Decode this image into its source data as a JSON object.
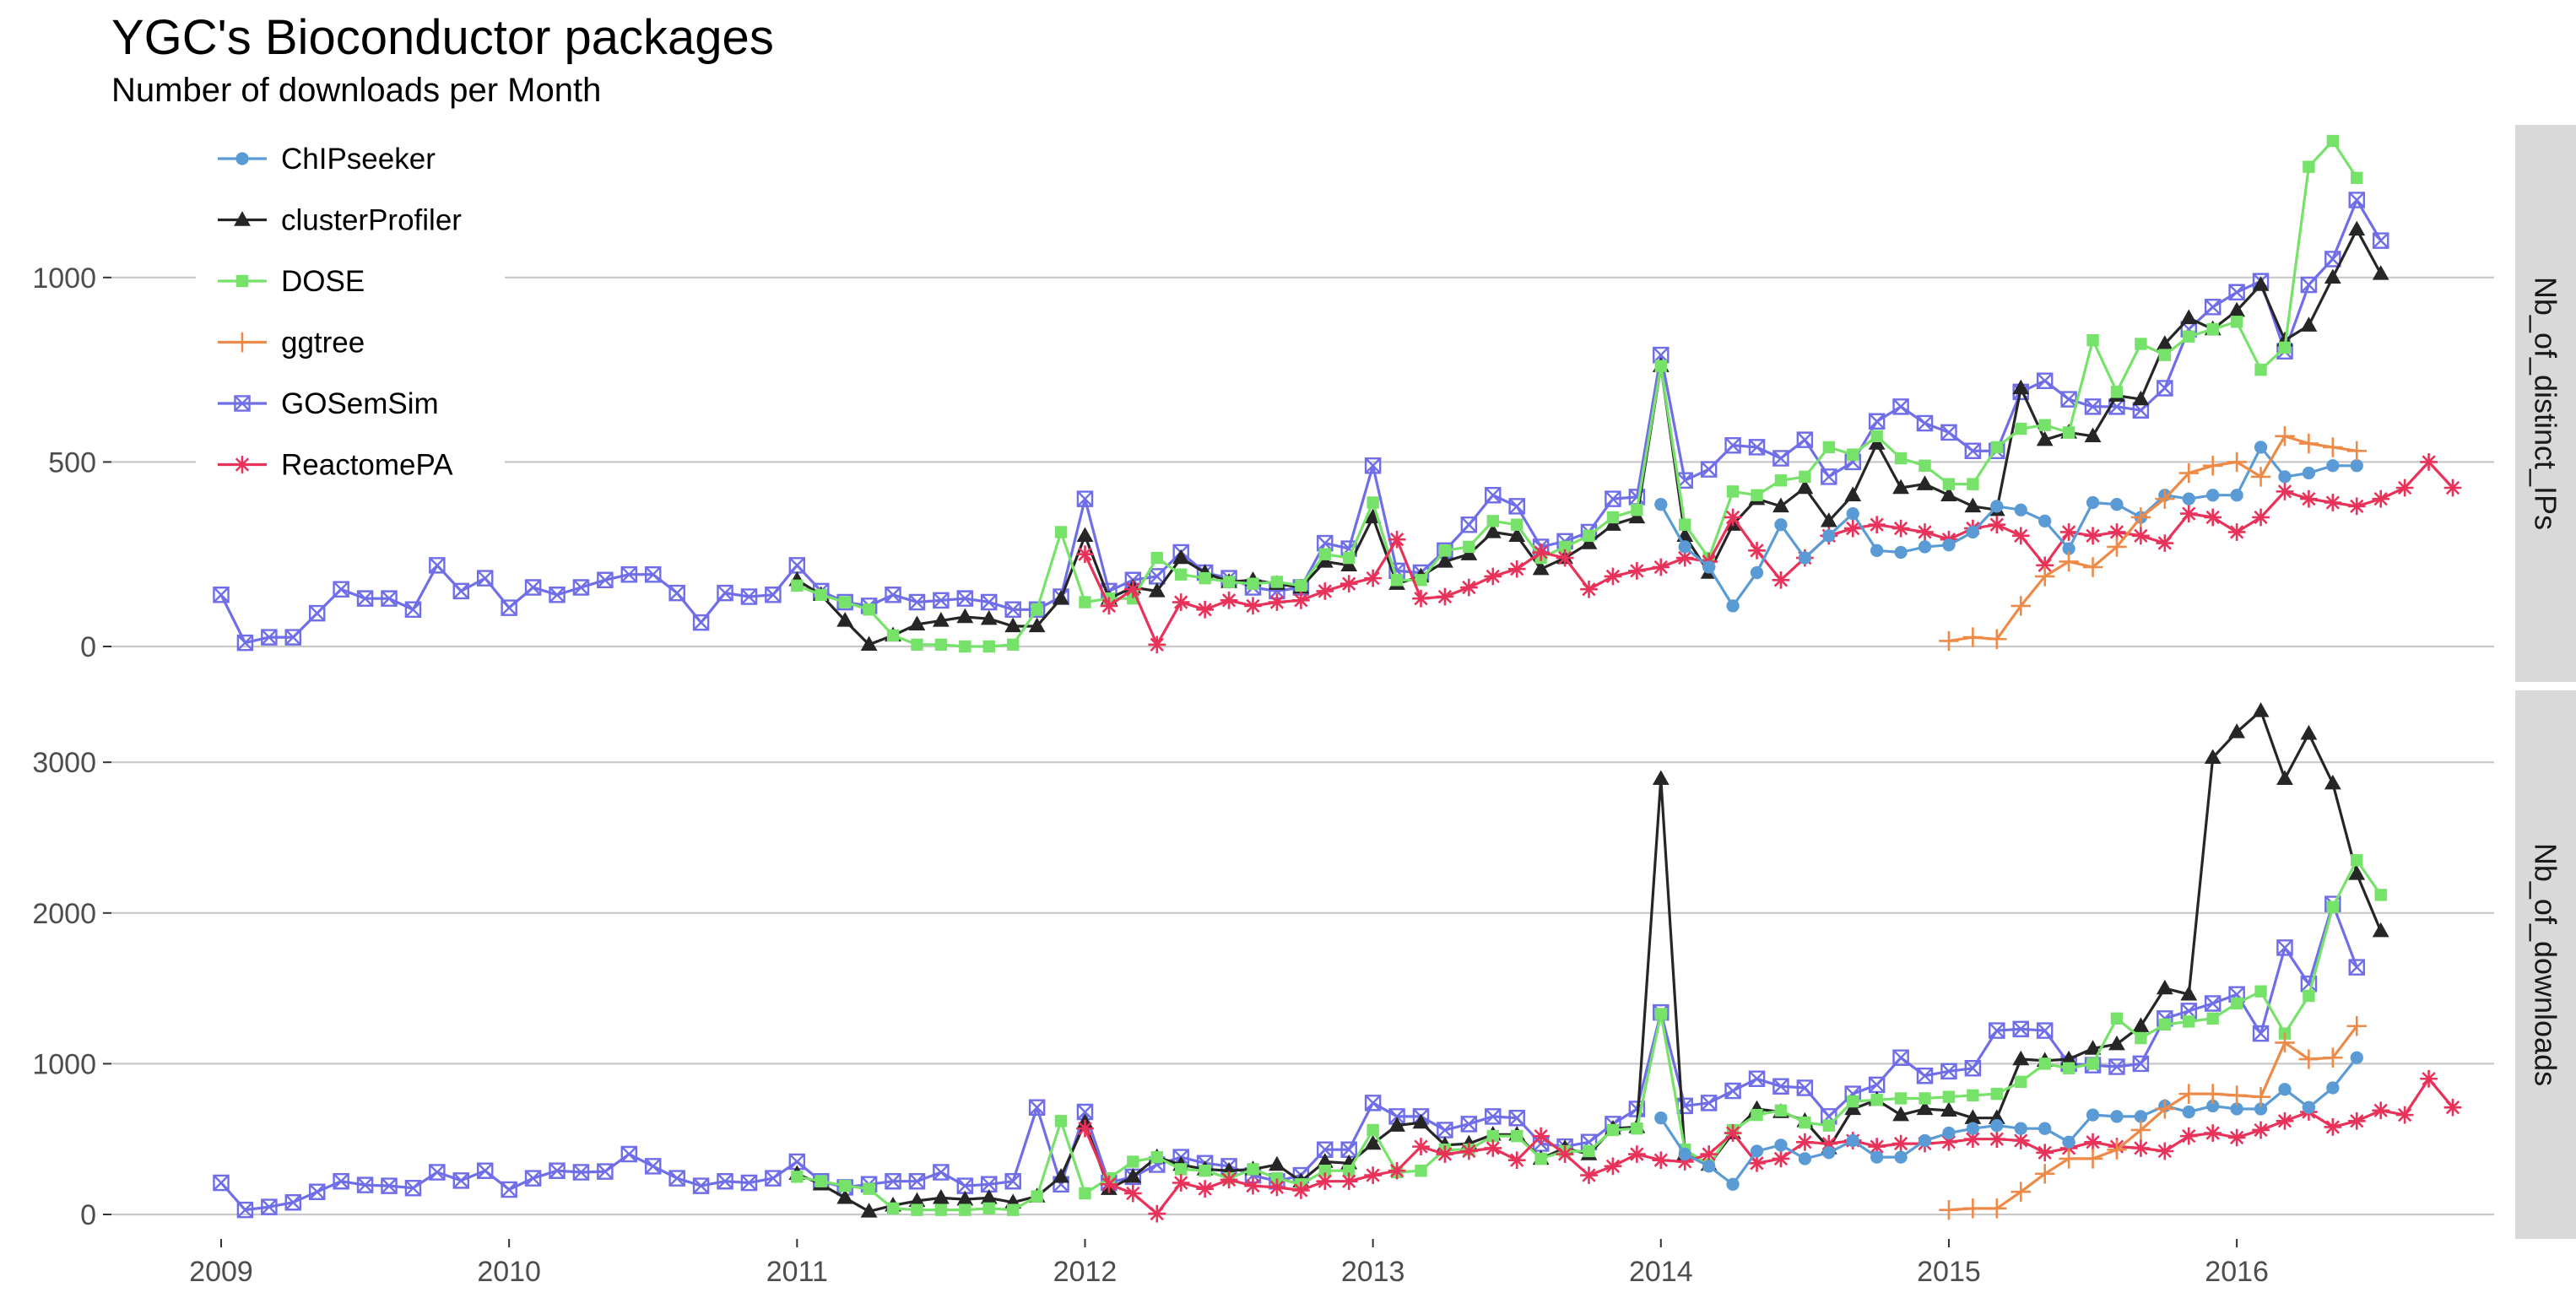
{
  "title": "YGC's Bioconductor packages",
  "subtitle": "Number of downloads per Month",
  "chart_data": {
    "type": "line",
    "x_label": "",
    "x_ticks": [
      "2009",
      "2010",
      "2011",
      "2012",
      "2013",
      "2014",
      "2015",
      "2016"
    ],
    "grid": true,
    "legend_position": "top-left (inside)",
    "legend": [
      {
        "name": "ChIPseeker",
        "color": "#5b9bd5",
        "marker": "circle"
      },
      {
        "name": "clusterProfiler",
        "color": "#262626",
        "marker": "triangle"
      },
      {
        "name": "DOSE",
        "color": "#77e26a",
        "marker": "square"
      },
      {
        "name": "ggtree",
        "color": "#ee8a47",
        "marker": "plus"
      },
      {
        "name": "GOSemSim",
        "color": "#6f6ee8",
        "marker": "square-x"
      },
      {
        "name": "ReactomePA",
        "color": "#e8325a",
        "marker": "asterisk"
      }
    ],
    "panels": [
      {
        "strip": "Nb_of_distinct_IPs",
        "ylim": [
          0,
          1400
        ],
        "y_ticks": [
          0,
          500,
          1000
        ],
        "series": [
          {
            "name": "GOSemSim",
            "start": "2009-01",
            "values": [
              140,
              10,
              25,
              25,
              90,
              155,
              130,
              130,
              100,
              220,
              150,
              185,
              105,
              160,
              140,
              160,
              180,
              195,
              195,
              145,
              65,
              145,
              135,
              140,
              220,
              150,
              120,
              110,
              140,
              120,
              125,
              130,
              120,
              100,
              100,
              135,
              400,
              150,
              180,
              190,
              255,
              200,
              185,
              160,
              150,
              160,
              280,
              265,
              490,
              205,
              200,
              260,
              330,
              410,
              380,
              270,
              285,
              310,
              400,
              405,
              790,
              450,
              480,
              545,
              540,
              510,
              560,
              460,
              500,
              610,
              650,
              605,
              580,
              530,
              530,
              690,
              720,
              670,
              650,
              650,
              640,
              700,
              860,
              920,
              960,
              990,
              800,
              980,
              1050,
              1210,
              1100
            ]
          },
          {
            "name": "clusterProfiler",
            "start": "2011-01",
            "values": [
              180,
              140,
              70,
              5,
              30,
              60,
              70,
              80,
              75,
              55,
              55,
              130,
              300,
              130,
              160,
              150,
              240,
              200,
              175,
              180,
              170,
              160,
              230,
              220,
              350,
              170,
              190,
              230,
              250,
              310,
              300,
              210,
              240,
              280,
              330,
              350,
              760,
              300,
              200,
              330,
              400,
              380,
              430,
              340,
              410,
              550,
              430,
              440,
              410,
              380,
              370,
              700,
              560,
              580,
              570,
              680,
              670,
              820,
              890,
              860,
              910,
              980,
              830,
              870,
              1000,
              1130,
              1010
            ]
          },
          {
            "name": "DOSE",
            "start": "2011-01",
            "values": [
              165,
              140,
              120,
              100,
              30,
              5,
              5,
              0,
              0,
              5,
              100,
              310,
              120,
              130,
              130,
              240,
              195,
              185,
              175,
              170,
              175,
              165,
              250,
              240,
              390,
              180,
              180,
              260,
              270,
              340,
              330,
              240,
              270,
              300,
              350,
              370,
              760,
              330,
              240,
              420,
              410,
              450,
              460,
              540,
              520,
              570,
              510,
              490,
              440,
              440,
              540,
              590,
              600,
              580,
              830,
              690,
              820,
              790,
              840,
              860,
              880,
              750,
              810,
              1300,
              1370,
              1270
            ]
          },
          {
            "name": "ReactomePA",
            "start": "2012-01",
            "values": [
              250,
              110,
              155,
              5,
              120,
              100,
              125,
              110,
              120,
              125,
              150,
              170,
              185,
              290,
              130,
              135,
              160,
              190,
              210,
              255,
              240,
              155,
              190,
              205,
              215,
              240,
              230,
              350,
              260,
              180,
              240,
              300,
              320,
              330,
              320,
              310,
              290,
              320,
              330,
              300,
              220,
              310,
              300,
              310,
              300,
              280,
              360,
              350,
              310,
              350,
              420,
              400,
              390,
              380,
              400,
              430,
              500,
              430
            ]
          },
          {
            "name": "ChIPseeker",
            "start": "2014-01",
            "values": [
              385,
              270,
              215,
              110,
              200,
              330,
              240,
              300,
              360,
              260,
              255,
              270,
              275,
              310,
              380,
              370,
              340,
              265,
              390,
              385,
              350,
              410,
              400,
              410,
              410,
              540,
              460,
              470,
              490,
              490
            ]
          },
          {
            "name": "ggtree",
            "start": "2015-01",
            "values": [
              15,
              25,
              20,
              110,
              190,
              230,
              215,
              270,
              350,
              400,
              470,
              490,
              500,
              460,
              570,
              550,
              540,
              530
            ]
          }
        ]
      },
      {
        "strip": "Nb_of_downloads",
        "ylim": [
          0,
          3500
        ],
        "y_ticks": [
          0,
          1000,
          2000,
          3000
        ],
        "series": [
          {
            "name": "GOSemSim",
            "start": "2009-01",
            "values": [
              210,
              30,
              50,
              80,
              150,
              220,
              195,
              190,
              175,
              280,
              225,
              290,
              165,
              240,
              290,
              280,
              285,
              400,
              320,
              240,
              190,
              220,
              210,
              240,
              350,
              220,
              180,
              200,
              220,
              220,
              280,
              190,
              200,
              220,
              710,
              200,
              680,
              210,
              250,
              330,
              380,
              340,
              320,
              260,
              220,
              260,
              430,
              430,
              740,
              650,
              650,
              560,
              600,
              650,
              640,
              470,
              450,
              480,
              600,
              700,
              1340,
              720,
              740,
              820,
              900,
              850,
              840,
              650,
              800,
              860,
              1040,
              920,
              950,
              970,
              1220,
              1230,
              1220,
              1000,
              990,
              980,
              1000,
              1300,
              1350,
              1400,
              1460,
              1200,
              1770,
              1530,
              2060,
              1640
            ]
          },
          {
            "name": "clusterProfiler",
            "start": "2011-01",
            "values": [
              270,
              200,
              110,
              20,
              60,
              90,
              110,
              100,
              110,
              80,
              120,
              250,
              610,
              170,
              250,
              380,
              330,
              300,
              290,
              300,
              330,
              220,
              350,
              340,
              470,
              590,
              610,
              460,
              470,
              530,
              530,
              370,
              440,
              400,
              570,
              580,
              2890,
              400,
              330,
              540,
              700,
              680,
              620,
              440,
              700,
              760,
              660,
              700,
              690,
              640,
              640,
              1030,
              1020,
              1030,
              1100,
              1130,
              1250,
              1500,
              1460,
              3030,
              3200,
              3340,
              2890,
              3190,
              2860,
              2260,
              1880
            ]
          },
          {
            "name": "DOSE",
            "start": "2011-01",
            "values": [
              250,
              220,
              190,
              170,
              40,
              30,
              30,
              30,
              40,
              30,
              120,
              620,
              140,
              240,
              350,
              380,
              300,
              290,
              240,
              300,
              240,
              200,
              290,
              290,
              560,
              280,
              290,
              430,
              430,
              520,
              520,
              370,
              420,
              420,
              560,
              570,
              1330,
              430,
              330,
              560,
              660,
              690,
              610,
              590,
              750,
              760,
              770,
              770,
              780,
              790,
              800,
              880,
              1000,
              970,
              1000,
              1300,
              1170,
              1260,
              1280,
              1300,
              1400,
              1480,
              1200,
              1450,
              2040,
              2350,
              2120
            ]
          },
          {
            "name": "ReactomePA",
            "start": "2012-01",
            "values": [
              570,
              200,
              140,
              5,
              210,
              170,
              230,
              190,
              180,
              160,
              220,
              220,
              260,
              290,
              450,
              400,
              420,
              440,
              360,
              520,
              400,
              260,
              320,
              400,
              360,
              350,
              400,
              540,
              340,
              370,
              480,
              470,
              490,
              450,
              470,
              470,
              480,
              500,
              500,
              490,
              410,
              440,
              480,
              450,
              440,
              420,
              520,
              540,
              510,
              560,
              620,
              680,
              580,
              620,
              690,
              660,
              900,
              710
            ]
          },
          {
            "name": "ChIPseeker",
            "start": "2014-01",
            "values": [
              640,
              400,
              320,
              200,
              420,
              460,
              370,
              410,
              490,
              380,
              380,
              490,
              540,
              570,
              590,
              570,
              570,
              480,
              660,
              650,
              650,
              720,
              680,
              720,
              700,
              700,
              830,
              710,
              840,
              1040
            ]
          },
          {
            "name": "ggtree",
            "start": "2015-01",
            "values": [
              30,
              40,
              40,
              150,
              270,
              370,
              370,
              430,
              560,
              700,
              800,
              800,
              790,
              780,
              1140,
              1030,
              1040,
              1250
            ]
          }
        ]
      }
    ]
  }
}
